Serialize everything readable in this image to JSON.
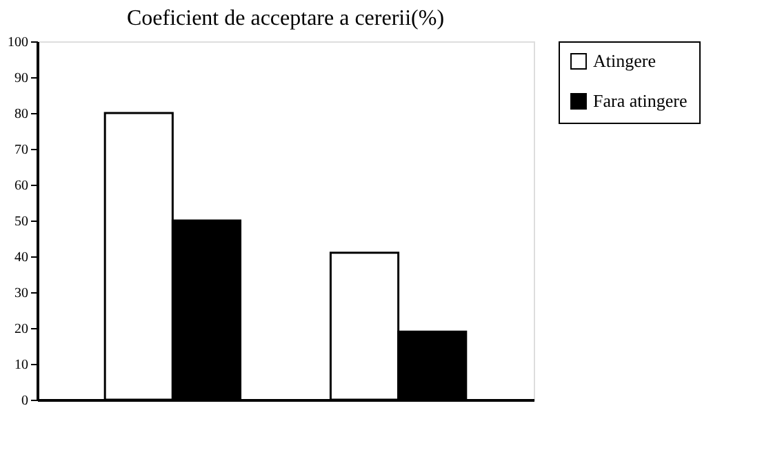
{
  "chart_data": {
    "type": "bar",
    "title": "Coeficient de acceptare a cererii(%)",
    "categories": [
      null,
      null
    ],
    "series": [
      {
        "name": "Atingere",
        "color": "#ffffff",
        "values": [
          80,
          41
        ]
      },
      {
        "name": "Fara atingere",
        "color": "#000000",
        "values": [
          50,
          19
        ]
      }
    ],
    "ylim": [
      0,
      100
    ],
    "yticks": [
      0,
      10,
      20,
      30,
      40,
      50,
      60,
      70,
      80,
      90,
      100
    ],
    "tick_labels": "y",
    "legend": "top right",
    "grid": false
  }
}
